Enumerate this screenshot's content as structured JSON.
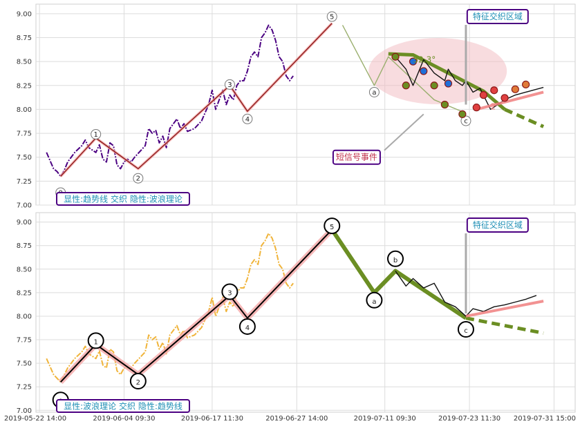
{
  "chart_data": [
    {
      "type": "line",
      "panel": "top",
      "title": "",
      "ylim": [
        7.0,
        9.1
      ],
      "yticks": [
        "9.00",
        "8.75",
        "8.50",
        "8.25",
        "8.00",
        "7.75",
        "7.50",
        "7.25",
        "7.00"
      ],
      "grid": true,
      "series": [
        {
          "style": "dash-dot",
          "color": "#4b0082",
          "values": [
            [
              0,
              7.55
            ],
            [
              2,
              7.38
            ],
            [
              3,
              7.35
            ],
            [
              4,
              7.3
            ],
            [
              5,
              7.36
            ],
            [
              6,
              7.45
            ],
            [
              8,
              7.55
            ],
            [
              10,
              7.62
            ],
            [
              11,
              7.68
            ],
            [
              12,
              7.6
            ],
            [
              14,
              7.55
            ],
            [
              15,
              7.63
            ],
            [
              16,
              7.48
            ],
            [
              17,
              7.45
            ],
            [
              18,
              7.65
            ],
            [
              19,
              7.62
            ],
            [
              20,
              7.42
            ],
            [
              21,
              7.38
            ],
            [
              22,
              7.45
            ],
            [
              23,
              7.48
            ],
            [
              24,
              7.45
            ],
            [
              25,
              7.5
            ],
            [
              27,
              7.58
            ],
            [
              28,
              7.62
            ],
            [
              29,
              7.8
            ],
            [
              30,
              7.75
            ],
            [
              31,
              7.78
            ],
            [
              32,
              7.65
            ],
            [
              33,
              7.72
            ],
            [
              34,
              7.6
            ],
            [
              35,
              7.8
            ],
            [
              37,
              7.9
            ],
            [
              38,
              7.8
            ],
            [
              39,
              7.85
            ],
            [
              40,
              7.77
            ],
            [
              42,
              7.8
            ],
            [
              44,
              7.88
            ],
            [
              46,
              8.05
            ],
            [
              47,
              8.2
            ],
            [
              48,
              8.0
            ],
            [
              49,
              8.1
            ],
            [
              50,
              8.2
            ],
            [
              51,
              8.05
            ],
            [
              52,
              8.15
            ],
            [
              53,
              8.1
            ],
            [
              54,
              8.25
            ],
            [
              55,
              8.3
            ],
            [
              56,
              8.3
            ],
            [
              57,
              8.4
            ],
            [
              58,
              8.55
            ],
            [
              59,
              8.6
            ],
            [
              60,
              8.55
            ],
            [
              61,
              8.75
            ],
            [
              62,
              8.8
            ],
            [
              63,
              8.88
            ],
            [
              64,
              8.83
            ],
            [
              65,
              8.72
            ],
            [
              66,
              8.55
            ],
            [
              67,
              8.5
            ],
            [
              68,
              8.35
            ],
            [
              69,
              8.3
            ],
            [
              70,
              8.35
            ]
          ]
        },
        {
          "style": "solid",
          "color": "#8b1a1a",
          "values": [
            [
              4,
              7.3
            ],
            [
              14,
              7.7
            ],
            [
              26,
              7.38
            ],
            [
              52,
              8.25
            ],
            [
              57,
              7.98
            ],
            [
              81,
              8.9
            ]
          ]
        },
        {
          "style": "solid",
          "color": "#6b8e23",
          "width": 5,
          "values": [
            [
              97,
              8.58
            ],
            [
              104,
              8.57
            ],
            [
              124,
              8.19
            ],
            [
              130,
              8.0
            ]
          ]
        },
        {
          "style": "solid",
          "color": "#9aaf6e",
          "values": [
            [
              84,
              8.88
            ],
            [
              93,
              8.25
            ],
            [
              97,
              8.55
            ],
            [
              110,
              8.1
            ],
            [
              119,
              7.96
            ]
          ]
        },
        {
          "style": "solid",
          "color": "#111111",
          "values": [
            [
              99,
              8.55
            ],
            [
              102,
              8.42
            ],
            [
              104,
              8.25
            ],
            [
              107,
              8.52
            ],
            [
              110,
              8.38
            ],
            [
              113,
              8.3
            ],
            [
              114,
              8.42
            ],
            [
              116,
              8.3
            ],
            [
              118,
              8.25
            ],
            [
              119,
              8.3
            ],
            [
              121,
              8.18
            ],
            [
              123,
              8.22
            ],
            [
              126,
              8.0
            ],
            [
              128,
              8.05
            ],
            [
              130,
              8.1
            ],
            [
              133,
              8.15
            ],
            [
              136,
              8.18
            ],
            [
              138,
              8.2
            ],
            [
              141,
              8.23
            ]
          ]
        }
      ],
      "trend_projection": {
        "from": [
          130,
          8.0
        ],
        "to": [
          141,
          7.82
        ]
      },
      "wave_points": [
        {
          "label": "0",
          "x": 4,
          "y": 7.13
        },
        {
          "label": "1",
          "x": 14,
          "y": 7.74
        },
        {
          "label": "2",
          "x": 26,
          "y": 7.28
        },
        {
          "label": "3",
          "x": 52,
          "y": 8.26
        },
        {
          "label": "4",
          "x": 57,
          "y": 7.9
        },
        {
          "label": "5",
          "x": 81,
          "y": 8.97
        },
        {
          "label": "a",
          "x": 93,
          "y": 8.18
        },
        {
          "label": "c",
          "x": 119,
          "y": 7.88
        }
      ],
      "angle_label": "52.3°",
      "angle_label_2": "2",
      "annotation_feature": "特征交织区域",
      "annotation_signal": "短信号事件",
      "legend": "显性:趋势线 交织 隐性:波浪理论"
    },
    {
      "type": "line",
      "panel": "bottom",
      "title": "",
      "ylim": [
        6.98,
        9.1
      ],
      "yticks": [
        "9.00",
        "8.75",
        "8.50",
        "8.25",
        "8.00",
        "7.75",
        "7.50",
        "7.25",
        "7.00"
      ],
      "grid": true,
      "series": [
        {
          "style": "dash-dot",
          "color": "#f0b43a",
          "values": [
            [
              0,
              7.55
            ],
            [
              2,
              7.38
            ],
            [
              4,
              7.3
            ],
            [
              6,
              7.45
            ],
            [
              8,
              7.55
            ],
            [
              10,
              7.62
            ],
            [
              11,
              7.68
            ],
            [
              12,
              7.6
            ],
            [
              14,
              7.55
            ],
            [
              15,
              7.63
            ],
            [
              16,
              7.48
            ],
            [
              17,
              7.45
            ],
            [
              18,
              7.65
            ],
            [
              19,
              7.62
            ],
            [
              20,
              7.42
            ],
            [
              21,
              7.38
            ],
            [
              22,
              7.45
            ],
            [
              24,
              7.45
            ],
            [
              25,
              7.5
            ],
            [
              27,
              7.58
            ],
            [
              28,
              7.62
            ],
            [
              29,
              7.8
            ],
            [
              30,
              7.75
            ],
            [
              31,
              7.78
            ],
            [
              32,
              7.65
            ],
            [
              33,
              7.72
            ],
            [
              34,
              7.6
            ],
            [
              35,
              7.8
            ],
            [
              37,
              7.9
            ],
            [
              38,
              7.8
            ],
            [
              39,
              7.85
            ],
            [
              40,
              7.77
            ],
            [
              42,
              7.8
            ],
            [
              44,
              7.88
            ],
            [
              46,
              8.05
            ],
            [
              47,
              8.2
            ],
            [
              48,
              8.0
            ],
            [
              49,
              8.1
            ],
            [
              50,
              8.2
            ],
            [
              51,
              8.05
            ],
            [
              52,
              8.15
            ],
            [
              53,
              8.1
            ],
            [
              54,
              8.25
            ],
            [
              55,
              8.3
            ],
            [
              56,
              8.3
            ],
            [
              57,
              8.4
            ],
            [
              58,
              8.55
            ],
            [
              59,
              8.6
            ],
            [
              60,
              8.55
            ],
            [
              61,
              8.75
            ],
            [
              62,
              8.8
            ],
            [
              63,
              8.88
            ],
            [
              64,
              8.83
            ],
            [
              65,
              8.72
            ],
            [
              66,
              8.55
            ],
            [
              67,
              8.5
            ],
            [
              68,
              8.35
            ],
            [
              69,
              8.3
            ],
            [
              70,
              8.35
            ]
          ]
        },
        {
          "style": "solid",
          "color": "#000000",
          "width": 2,
          "values": [
            [
              4,
              7.3
            ],
            [
              14,
              7.7
            ],
            [
              26,
              7.38
            ],
            [
              52,
              8.22
            ],
            [
              57,
              7.98
            ],
            [
              81,
              8.92
            ]
          ]
        },
        {
          "style": "solid",
          "color": "#6b8e23",
          "width": 6,
          "values": [
            [
              81,
              8.92
            ],
            [
              93,
              8.25
            ],
            [
              99,
              8.48
            ],
            [
              119,
              7.98
            ]
          ]
        },
        {
          "style": "solid",
          "color": "#111111",
          "values": [
            [
              99,
              8.48
            ],
            [
              102,
              8.32
            ],
            [
              104,
              8.4
            ],
            [
              107,
              8.3
            ],
            [
              110,
              8.35
            ],
            [
              113,
              8.15
            ],
            [
              116,
              8.1
            ],
            [
              119,
              8.0
            ],
            [
              121,
              8.08
            ],
            [
              124,
              8.05
            ],
            [
              127,
              8.1
            ],
            [
              130,
              8.12
            ],
            [
              133,
              8.15
            ],
            [
              136,
              8.18
            ],
            [
              139,
              8.22
            ]
          ]
        }
      ],
      "trend_projection": {
        "from": [
          119,
          7.98
        ],
        "to": [
          141,
          7.82
        ]
      },
      "wave_points": [
        {
          "label": "0",
          "x": 4,
          "y": 7.11
        },
        {
          "label": "1",
          "x": 14,
          "y": 7.74
        },
        {
          "label": "2",
          "x": 26,
          "y": 7.31
        },
        {
          "label": "3",
          "x": 52,
          "y": 8.26
        },
        {
          "label": "4",
          "x": 57,
          "y": 7.89
        },
        {
          "label": "5",
          "x": 81,
          "y": 8.96
        },
        {
          "label": "a",
          "x": 93,
          "y": 8.17
        },
        {
          "label": "b",
          "x": 99,
          "y": 8.61
        },
        {
          "label": "c",
          "x": 119,
          "y": 7.86
        }
      ],
      "annotation_feature": "特征交织区域",
      "legend": "显性:波浪理论 交织 隐性:趋势线"
    }
  ],
  "xaxis": {
    "ticks": [
      "2019-05-22 14:00",
      "2019-06-04 09:30",
      "2019-06-17 11:30",
      "2019-06-27 14:00",
      "2019-07-11 09:30",
      "2019-07-23 11:30",
      "2019-07-31 15:00"
    ]
  }
}
